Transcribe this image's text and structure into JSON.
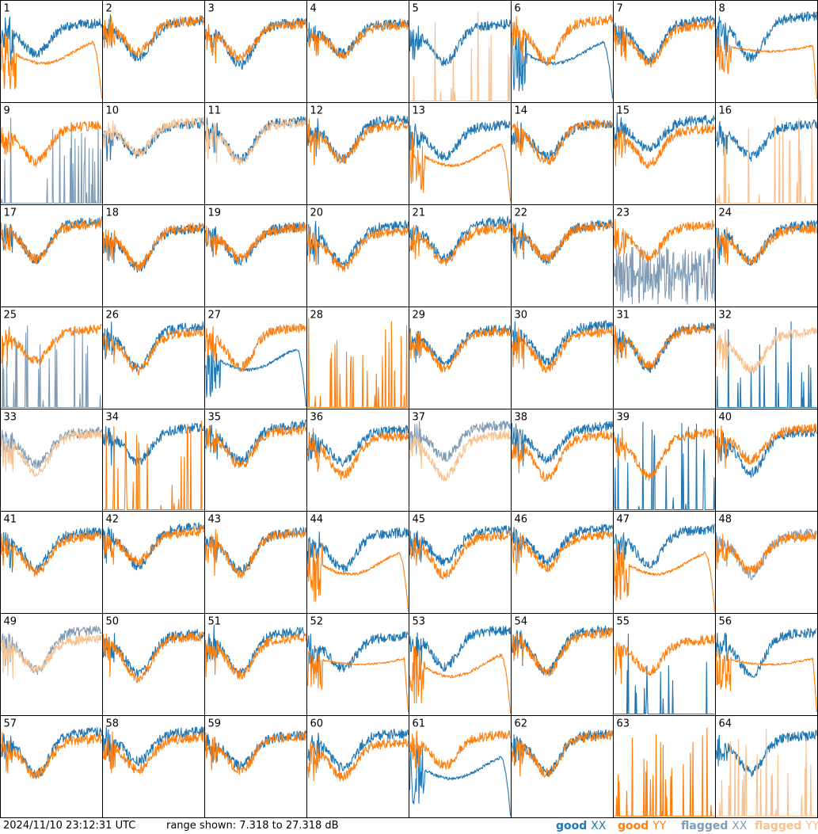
{
  "footer": {
    "timestamp": "2024/11/10 23:12:31 UTC",
    "range_text": "range shown: 7.318 to 27.318 dB",
    "legend": [
      {
        "prefix": "good",
        "suffix": "XX",
        "color": "#1f77b4"
      },
      {
        "prefix": "good",
        "suffix": "YY",
        "color": "#ff7f0e"
      },
      {
        "prefix": "flagged",
        "suffix": "XX",
        "color": "#7f9bb5"
      },
      {
        "prefix": "flagged",
        "suffix": "YY",
        "color": "#f7c08f"
      }
    ]
  },
  "chart_data": {
    "type": "line",
    "layout": "8x8 small multiples, one panel per antenna",
    "y_unit": "dB",
    "ylim": [
      7.318,
      27.318
    ],
    "grid": false,
    "legend_position": "bottom-right",
    "colors": {
      "good_xx": "#1f77b4",
      "good_yy": "#ff7f0e",
      "flagged_xx": "#7f9bb5",
      "flagged_yy": "#f7c08f"
    },
    "panels": [
      {
        "id": 1,
        "xx": {
          "shape": "normal",
          "status": "good"
        },
        "yy": {
          "shape": "rolloff",
          "status": "good"
        }
      },
      {
        "id": 2,
        "xx": {
          "shape": "normal",
          "status": "good"
        },
        "yy": {
          "shape": "normal",
          "status": "good"
        }
      },
      {
        "id": 3,
        "xx": {
          "shape": "normal",
          "status": "good"
        },
        "yy": {
          "shape": "normal",
          "status": "good"
        }
      },
      {
        "id": 4,
        "xx": {
          "shape": "normal",
          "status": "good"
        },
        "yy": {
          "shape": "normal",
          "status": "good"
        }
      },
      {
        "id": 5,
        "xx": {
          "shape": "normal",
          "status": "good"
        },
        "yy": {
          "shape": "spikes",
          "status": "flagged"
        }
      },
      {
        "id": 6,
        "xx": {
          "shape": "rolloff",
          "status": "good"
        },
        "yy": {
          "shape": "normal",
          "status": "good"
        }
      },
      {
        "id": 7,
        "xx": {
          "shape": "normal",
          "status": "good"
        },
        "yy": {
          "shape": "normal",
          "status": "good"
        }
      },
      {
        "id": 8,
        "xx": {
          "shape": "normal",
          "status": "good"
        },
        "yy": {
          "shape": "smooth",
          "status": "good"
        }
      },
      {
        "id": 9,
        "xx": {
          "shape": "spikes",
          "status": "flagged"
        },
        "yy": {
          "shape": "normal",
          "status": "good"
        }
      },
      {
        "id": 10,
        "xx": {
          "shape": "normal",
          "status": "good"
        },
        "yy": {
          "shape": "normal",
          "status": "flagged"
        }
      },
      {
        "id": 11,
        "xx": {
          "shape": "normal",
          "status": "good"
        },
        "yy": {
          "shape": "normal",
          "status": "flagged"
        }
      },
      {
        "id": 12,
        "xx": {
          "shape": "normal",
          "status": "good"
        },
        "yy": {
          "shape": "normal",
          "status": "good"
        }
      },
      {
        "id": 13,
        "xx": {
          "shape": "normal",
          "status": "good"
        },
        "yy": {
          "shape": "rolloff",
          "status": "good"
        }
      },
      {
        "id": 14,
        "xx": {
          "shape": "normal",
          "status": "good"
        },
        "yy": {
          "shape": "normal",
          "status": "good"
        }
      },
      {
        "id": 15,
        "xx": {
          "shape": "normal",
          "status": "good"
        },
        "yy": {
          "shape": "normal",
          "status": "good"
        }
      },
      {
        "id": 16,
        "xx": {
          "shape": "normal",
          "status": "good"
        },
        "yy": {
          "shape": "spikes",
          "status": "flagged"
        }
      },
      {
        "id": 17,
        "xx": {
          "shape": "normal",
          "status": "good"
        },
        "yy": {
          "shape": "normal",
          "status": "good"
        }
      },
      {
        "id": 18,
        "xx": {
          "shape": "normal",
          "status": "good"
        },
        "yy": {
          "shape": "normal",
          "status": "good"
        }
      },
      {
        "id": 19,
        "xx": {
          "shape": "normal",
          "status": "good"
        },
        "yy": {
          "shape": "normal",
          "status": "good"
        }
      },
      {
        "id": 20,
        "xx": {
          "shape": "normal",
          "status": "good"
        },
        "yy": {
          "shape": "normal",
          "status": "good"
        }
      },
      {
        "id": 21,
        "xx": {
          "shape": "normal",
          "status": "good"
        },
        "yy": {
          "shape": "normal",
          "status": "good"
        }
      },
      {
        "id": 22,
        "xx": {
          "shape": "normal",
          "status": "good"
        },
        "yy": {
          "shape": "normal",
          "status": "good"
        }
      },
      {
        "id": 23,
        "xx": {
          "shape": "noisy",
          "status": "flagged"
        },
        "yy": {
          "shape": "normal",
          "status": "good"
        }
      },
      {
        "id": 24,
        "xx": {
          "shape": "normal",
          "status": "good"
        },
        "yy": {
          "shape": "normal",
          "status": "good"
        }
      },
      {
        "id": 25,
        "xx": {
          "shape": "spikes",
          "status": "flagged"
        },
        "yy": {
          "shape": "normal",
          "status": "good"
        }
      },
      {
        "id": 26,
        "xx": {
          "shape": "normal",
          "status": "good"
        },
        "yy": {
          "shape": "normal",
          "status": "good"
        }
      },
      {
        "id": 27,
        "xx": {
          "shape": "rolloff",
          "status": "good"
        },
        "yy": {
          "shape": "normal",
          "status": "good"
        }
      },
      {
        "id": 28,
        "xx": {
          "shape": "none",
          "status": "good"
        },
        "yy": {
          "shape": "spikes",
          "status": "good"
        }
      },
      {
        "id": 29,
        "xx": {
          "shape": "normal",
          "status": "good"
        },
        "yy": {
          "shape": "normal",
          "status": "good"
        }
      },
      {
        "id": 30,
        "xx": {
          "shape": "normal",
          "status": "good"
        },
        "yy": {
          "shape": "normal",
          "status": "good"
        }
      },
      {
        "id": 31,
        "xx": {
          "shape": "normal",
          "status": "good"
        },
        "yy": {
          "shape": "normal",
          "status": "good"
        }
      },
      {
        "id": 32,
        "xx": {
          "shape": "spikes",
          "status": "good"
        },
        "yy": {
          "shape": "normal",
          "status": "flagged"
        }
      },
      {
        "id": 33,
        "xx": {
          "shape": "normal",
          "status": "flagged"
        },
        "yy": {
          "shape": "normal",
          "status": "flagged"
        }
      },
      {
        "id": 34,
        "xx": {
          "shape": "normal",
          "status": "good"
        },
        "yy": {
          "shape": "spikes",
          "status": "good"
        }
      },
      {
        "id": 35,
        "xx": {
          "shape": "normal",
          "status": "good"
        },
        "yy": {
          "shape": "normal",
          "status": "good"
        }
      },
      {
        "id": 36,
        "xx": {
          "shape": "normal",
          "status": "good"
        },
        "yy": {
          "shape": "normal",
          "status": "good"
        }
      },
      {
        "id": 37,
        "xx": {
          "shape": "normal",
          "status": "flagged"
        },
        "yy": {
          "shape": "normal",
          "status": "flagged"
        }
      },
      {
        "id": 38,
        "xx": {
          "shape": "normal",
          "status": "good"
        },
        "yy": {
          "shape": "normal",
          "status": "good"
        }
      },
      {
        "id": 39,
        "xx": {
          "shape": "spikes",
          "status": "good"
        },
        "yy": {
          "shape": "normal",
          "status": "good"
        }
      },
      {
        "id": 40,
        "xx": {
          "shape": "normal",
          "status": "good"
        },
        "yy": {
          "shape": "normal",
          "status": "good"
        }
      },
      {
        "id": 41,
        "xx": {
          "shape": "normal",
          "status": "good"
        },
        "yy": {
          "shape": "normal",
          "status": "good"
        }
      },
      {
        "id": 42,
        "xx": {
          "shape": "normal",
          "status": "good"
        },
        "yy": {
          "shape": "normal",
          "status": "good"
        }
      },
      {
        "id": 43,
        "xx": {
          "shape": "normal",
          "status": "good"
        },
        "yy": {
          "shape": "normal",
          "status": "good"
        }
      },
      {
        "id": 44,
        "xx": {
          "shape": "normal",
          "status": "good"
        },
        "yy": {
          "shape": "rolloff",
          "status": "good"
        }
      },
      {
        "id": 45,
        "xx": {
          "shape": "normal",
          "status": "good"
        },
        "yy": {
          "shape": "normal",
          "status": "good"
        }
      },
      {
        "id": 46,
        "xx": {
          "shape": "normal",
          "status": "good"
        },
        "yy": {
          "shape": "normal",
          "status": "good"
        }
      },
      {
        "id": 47,
        "xx": {
          "shape": "normal",
          "status": "good"
        },
        "yy": {
          "shape": "rolloff",
          "status": "good"
        }
      },
      {
        "id": 48,
        "xx": {
          "shape": "normal",
          "status": "flagged"
        },
        "yy": {
          "shape": "normal",
          "status": "good"
        }
      },
      {
        "id": 49,
        "xx": {
          "shape": "normal",
          "status": "flagged"
        },
        "yy": {
          "shape": "normal",
          "status": "flagged"
        }
      },
      {
        "id": 50,
        "xx": {
          "shape": "normal",
          "status": "good"
        },
        "yy": {
          "shape": "normal",
          "status": "good"
        }
      },
      {
        "id": 51,
        "xx": {
          "shape": "normal",
          "status": "good"
        },
        "yy": {
          "shape": "normal",
          "status": "good"
        }
      },
      {
        "id": 52,
        "xx": {
          "shape": "normal",
          "status": "good"
        },
        "yy": {
          "shape": "smooth",
          "status": "good"
        }
      },
      {
        "id": 53,
        "xx": {
          "shape": "normal",
          "status": "good"
        },
        "yy": {
          "shape": "rolloff",
          "status": "good"
        }
      },
      {
        "id": 54,
        "xx": {
          "shape": "normal",
          "status": "good"
        },
        "yy": {
          "shape": "normal",
          "status": "good"
        }
      },
      {
        "id": 55,
        "xx": {
          "shape": "spikes",
          "status": "good"
        },
        "yy": {
          "shape": "normal",
          "status": "good"
        }
      },
      {
        "id": 56,
        "xx": {
          "shape": "normal",
          "status": "good"
        },
        "yy": {
          "shape": "smooth",
          "status": "good"
        }
      },
      {
        "id": 57,
        "xx": {
          "shape": "normal",
          "status": "good"
        },
        "yy": {
          "shape": "normal",
          "status": "good"
        }
      },
      {
        "id": 58,
        "xx": {
          "shape": "normal",
          "status": "good"
        },
        "yy": {
          "shape": "normal",
          "status": "good"
        }
      },
      {
        "id": 59,
        "xx": {
          "shape": "normal",
          "status": "good"
        },
        "yy": {
          "shape": "normal",
          "status": "good"
        }
      },
      {
        "id": 60,
        "xx": {
          "shape": "normal",
          "status": "good"
        },
        "yy": {
          "shape": "normal",
          "status": "good"
        }
      },
      {
        "id": 61,
        "xx": {
          "shape": "rolloff",
          "status": "good"
        },
        "yy": {
          "shape": "normal",
          "status": "good"
        }
      },
      {
        "id": 62,
        "xx": {
          "shape": "normal",
          "status": "good"
        },
        "yy": {
          "shape": "normal",
          "status": "good"
        }
      },
      {
        "id": 63,
        "xx": {
          "shape": "none",
          "status": "good"
        },
        "yy": {
          "shape": "spikes",
          "status": "good"
        }
      },
      {
        "id": 64,
        "xx": {
          "shape": "normal",
          "status": "good"
        },
        "yy": {
          "shape": "spikes",
          "status": "flagged"
        }
      }
    ]
  }
}
